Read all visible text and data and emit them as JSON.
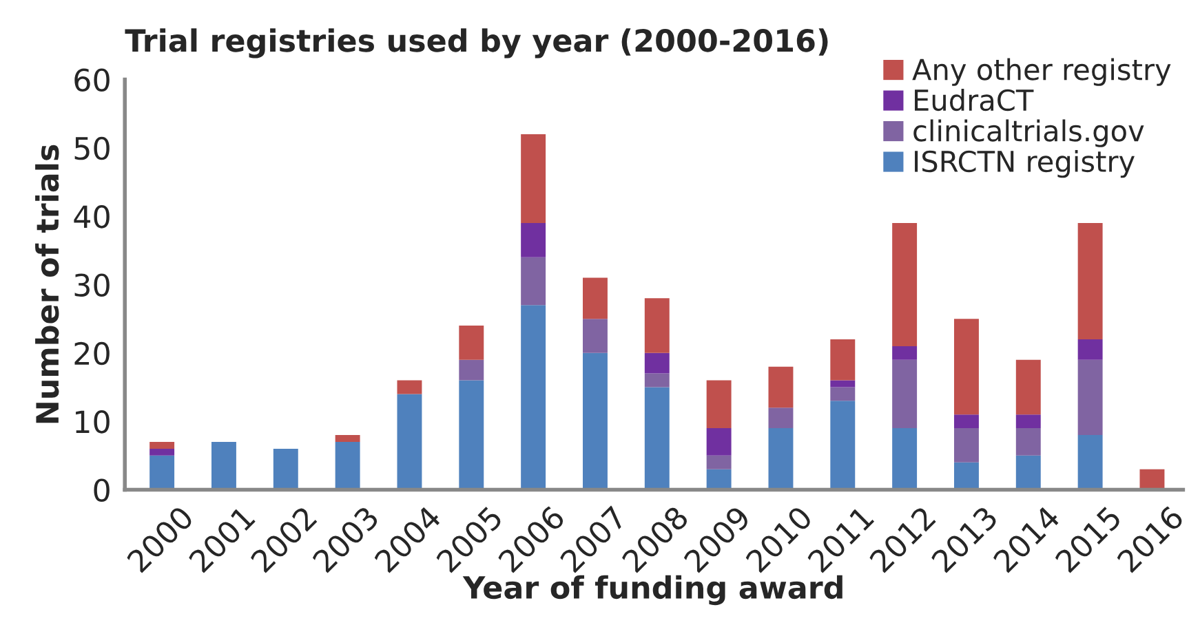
{
  "chart_data": {
    "type": "bar",
    "title": "Trial registries used by year (2000-2016)",
    "xlabel": "Year of funding award",
    "ylabel": "Number of trials",
    "categories": [
      "2000",
      "2001",
      "2002",
      "2003",
      "2004",
      "2005",
      "2006",
      "2007",
      "2008",
      "2009",
      "2010",
      "2011",
      "2012",
      "2013",
      "2014",
      "2015",
      "2016"
    ],
    "stacked": true,
    "series": [
      {
        "name": "ISRCTN registry",
        "color": "#4f81bd",
        "values": [
          5,
          7,
          6,
          7,
          14,
          16,
          27,
          20,
          15,
          3,
          9,
          13,
          9,
          4,
          5,
          8,
          0
        ]
      },
      {
        "name": "clinicaltrials.gov",
        "color": "#8064a2",
        "values": [
          0,
          0,
          0,
          0,
          0,
          3,
          7,
          5,
          2,
          2,
          3,
          2,
          10,
          5,
          4,
          11,
          0
        ]
      },
      {
        "name": "EudraCT",
        "color": "#7030a0",
        "values": [
          1,
          0,
          0,
          0,
          0,
          0,
          5,
          0,
          3,
          4,
          0,
          1,
          2,
          2,
          2,
          3,
          0
        ]
      },
      {
        "name": "Any other registry",
        "color": "#c0504d",
        "values": [
          1,
          0,
          0,
          1,
          2,
          5,
          13,
          6,
          8,
          7,
          6,
          6,
          18,
          14,
          8,
          17,
          3
        ]
      }
    ],
    "ylim": [
      0,
      60
    ],
    "yticks": [
      0,
      10,
      20,
      30,
      40,
      50,
      60
    ],
    "grid": false,
    "legend": "top right"
  }
}
